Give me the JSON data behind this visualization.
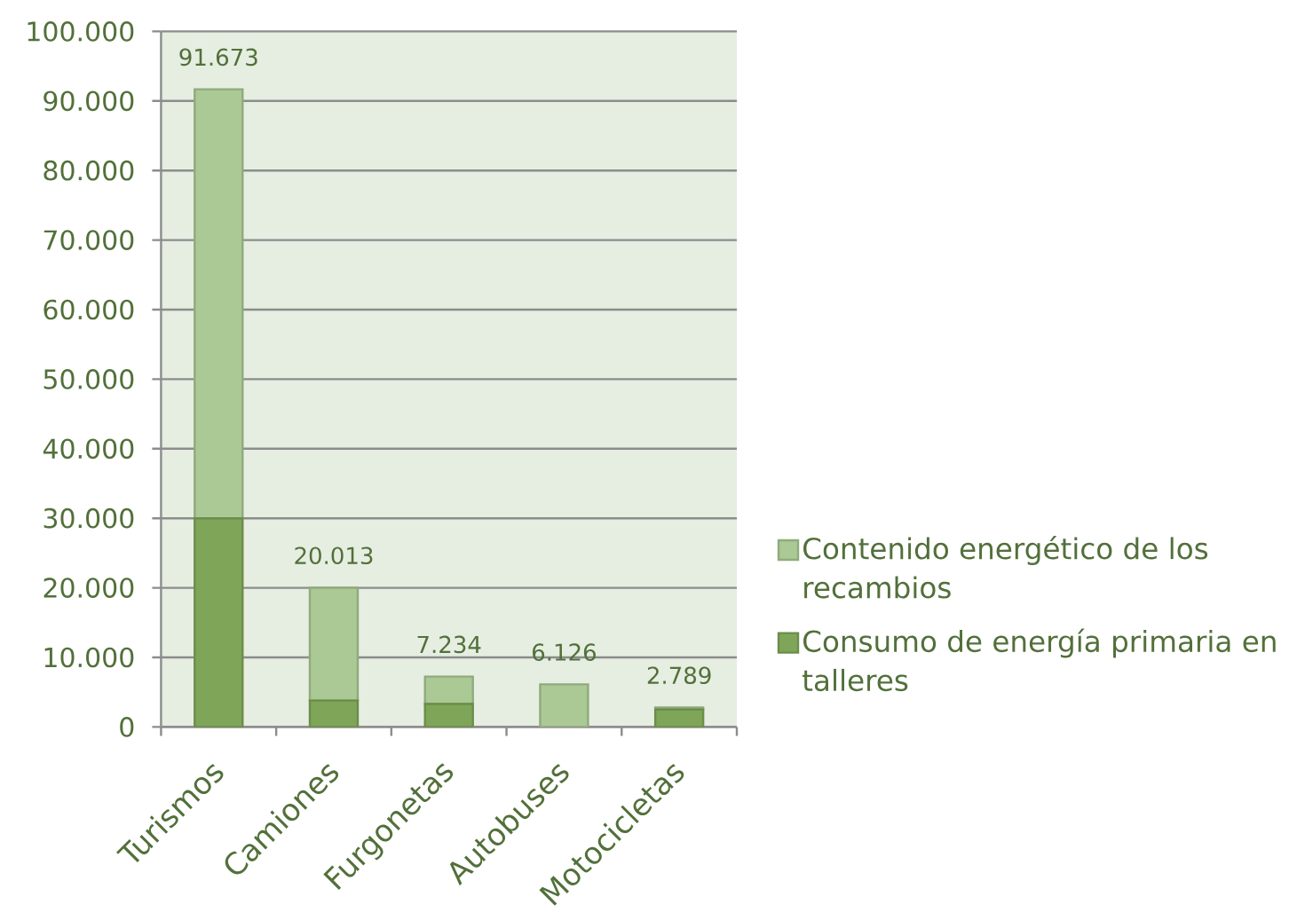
{
  "chart_data": {
    "type": "bar",
    "stacked": true,
    "categories": [
      "Turismos",
      "Camiones",
      "Furgonetas",
      "Autobuses",
      "Motocicletas"
    ],
    "series": [
      {
        "name": "Consumo de energía primaria en talleres",
        "color": "#7fa658",
        "values": [
          30000,
          3800,
          3300,
          0,
          2500
        ]
      },
      {
        "name": "Contenido energético de los recambios",
        "color": "#aac994",
        "values": [
          61673,
          16213,
          3934,
          6126,
          289
        ]
      }
    ],
    "totals": [
      "91.673",
      "20.013",
      "7.234",
      "6.126",
      "2.789"
    ],
    "ylim": [
      0,
      100000
    ],
    "yticks": [
      0,
      {
        "value": 10000,
        "label": "10.000"
      },
      {
        "value": 20000,
        "label": "20.000"
      },
      {
        "value": 30000,
        "label": "30.000"
      },
      {
        "value": 40000,
        "label": "40.000"
      },
      {
        "value": 50000,
        "label": "50.000"
      },
      {
        "value": 60000,
        "label": "60.000"
      },
      {
        "value": 70000,
        "label": "70.000"
      },
      {
        "value": 80000,
        "label": "80.000"
      },
      {
        "value": 90000,
        "label": "90.000"
      },
      {
        "value": 100000,
        "label": "100.000"
      }
    ],
    "grid": "y",
    "legend": "right"
  }
}
